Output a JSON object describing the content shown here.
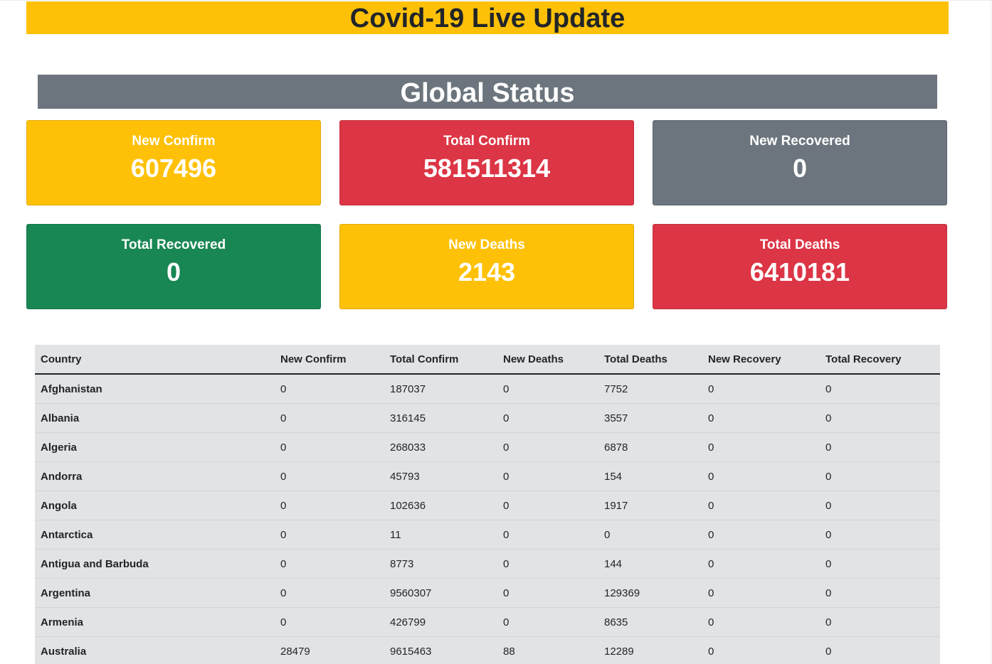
{
  "header": {
    "title": "Covid-19 Live Update"
  },
  "global": {
    "title": "Global Status"
  },
  "cards": [
    {
      "label": "New Confirm",
      "value": "607496",
      "color": "#ffc107"
    },
    {
      "label": "Total Confirm",
      "value": "581511314",
      "color": "#dc3545"
    },
    {
      "label": "New Recovered",
      "value": "0",
      "color": "#6c757d"
    },
    {
      "label": "Total Recovered",
      "value": "0",
      "color": "#198754"
    },
    {
      "label": "New Deaths",
      "value": "2143",
      "color": "#ffc107"
    },
    {
      "label": "Total Deaths",
      "value": "6410181",
      "color": "#dc3545"
    }
  ],
  "table": {
    "columns": [
      "Country",
      "New Confirm",
      "Total Confirm",
      "New Deaths",
      "Total Deaths",
      "New Recovery",
      "Total Recovery"
    ],
    "rows": [
      [
        "Afghanistan",
        "0",
        "187037",
        "0",
        "7752",
        "0",
        "0"
      ],
      [
        "Albania",
        "0",
        "316145",
        "0",
        "3557",
        "0",
        "0"
      ],
      [
        "Algeria",
        "0",
        "268033",
        "0",
        "6878",
        "0",
        "0"
      ],
      [
        "Andorra",
        "0",
        "45793",
        "0",
        "154",
        "0",
        "0"
      ],
      [
        "Angola",
        "0",
        "102636",
        "0",
        "1917",
        "0",
        "0"
      ],
      [
        "Antarctica",
        "0",
        "11",
        "0",
        "0",
        "0",
        "0"
      ],
      [
        "Antigua and Barbuda",
        "0",
        "8773",
        "0",
        "144",
        "0",
        "0"
      ],
      [
        "Argentina",
        "0",
        "9560307",
        "0",
        "129369",
        "0",
        "0"
      ],
      [
        "Armenia",
        "0",
        "426799",
        "0",
        "8635",
        "0",
        "0"
      ],
      [
        "Australia",
        "28479",
        "9615463",
        "88",
        "12289",
        "0",
        "0"
      ]
    ]
  }
}
